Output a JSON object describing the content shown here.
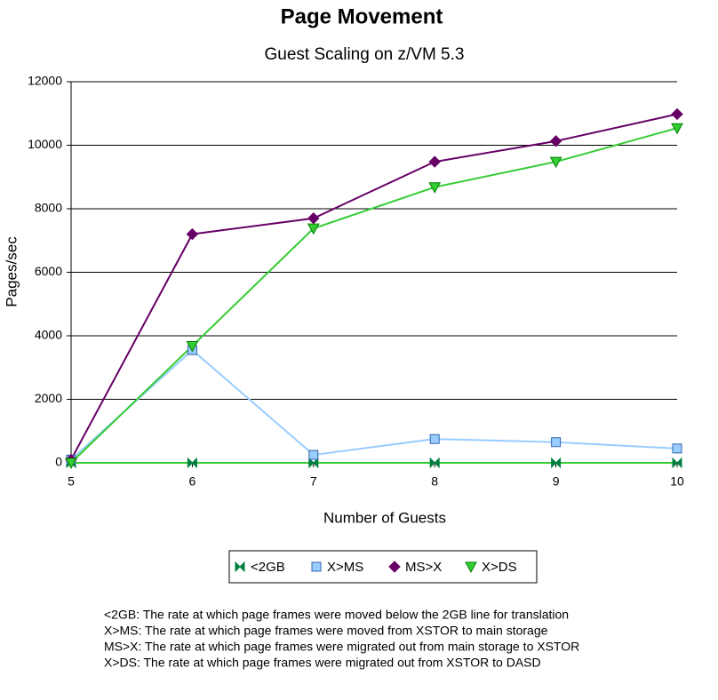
{
  "chart_data": {
    "type": "line",
    "title": "Page Movement",
    "subtitle": "Guest Scaling on z/VM 5.3",
    "x_label": "Number of Guests",
    "y_label": "Pages/sec",
    "x": [
      5,
      6,
      7,
      8,
      9,
      10
    ],
    "xlim": [
      5,
      10
    ],
    "xticks": [
      5,
      6,
      7,
      8,
      9,
      10
    ],
    "ylim": [
      0,
      12000
    ],
    "yticks": [
      0,
      2000,
      4000,
      6000,
      8000,
      10000,
      12000
    ],
    "grid": true,
    "legend": "bottom",
    "series": [
      {
        "name": "<2GB",
        "color": "#008040",
        "line_color": "#33cc33",
        "marker": "bowtie",
        "values": [
          0,
          0,
          0,
          0,
          0,
          0
        ]
      },
      {
        "name": "X>MS",
        "color": "#99ccff",
        "marker": "square",
        "values": [
          100,
          3550,
          250,
          750,
          650,
          450
        ]
      },
      {
        "name": "MS>X",
        "color": "#660066",
        "marker": "diamond",
        "values": [
          100,
          7200,
          7700,
          9480,
          10130,
          10980
        ]
      },
      {
        "name": "X>DS",
        "color": "#33cc33",
        "marker": "triangle-down",
        "values": [
          0,
          3680,
          7380,
          8680,
          9480,
          10540
        ]
      }
    ],
    "notes": [
      "<2GB: The rate at which page frames were moved below the 2GB line for translation",
      "X>MS: The rate at which page frames were moved from XSTOR to main storage",
      "MS>X: The rate at which page frames were migrated out from main storage to XSTOR",
      "X>DS: The rate at which page frames were migrated out from XSTOR to DASD"
    ]
  }
}
